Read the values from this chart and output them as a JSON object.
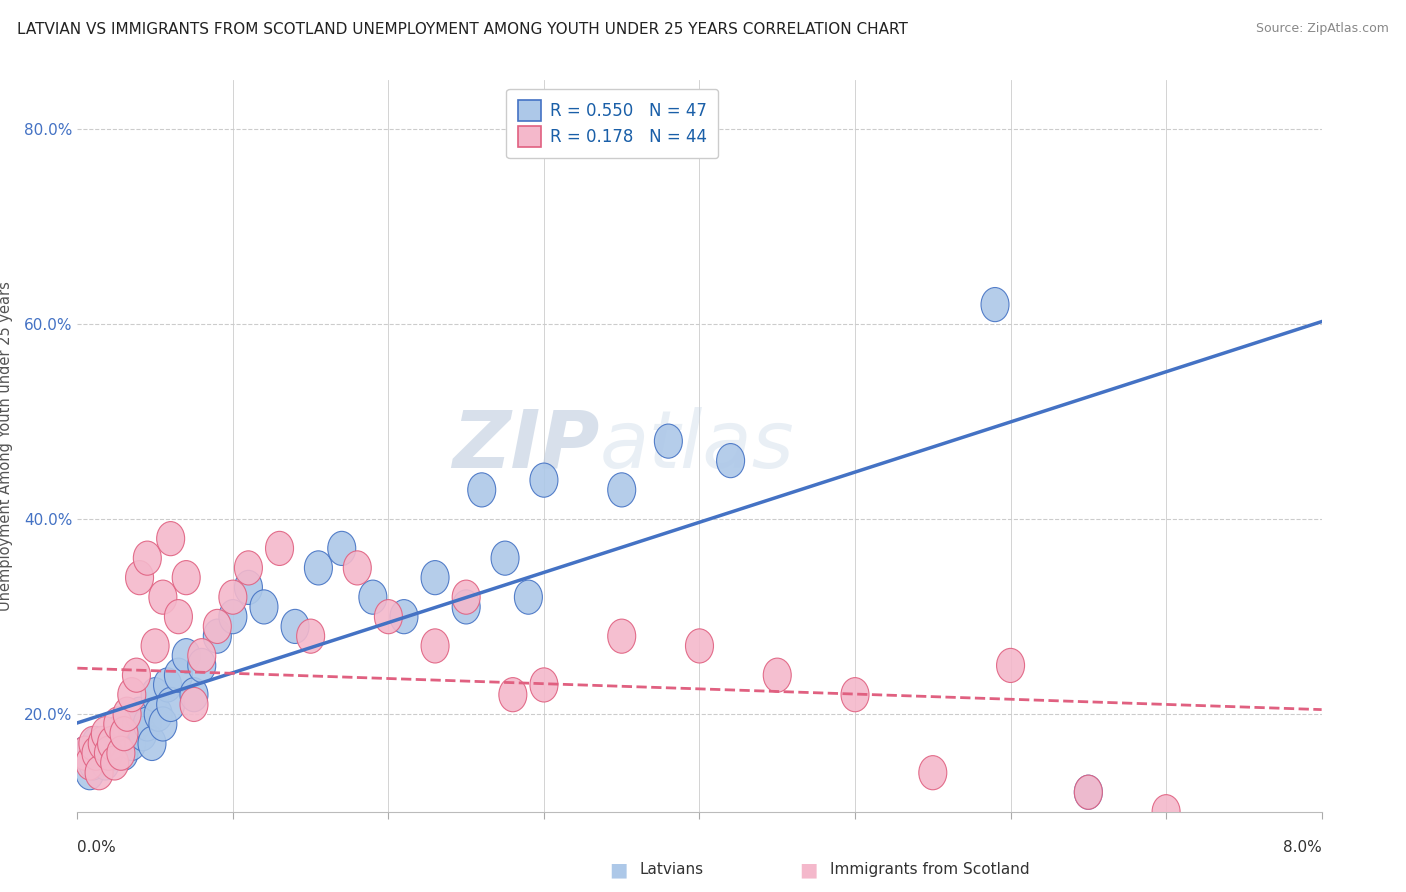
{
  "title": "LATVIAN VS IMMIGRANTS FROM SCOTLAND UNEMPLOYMENT AMONG YOUTH UNDER 25 YEARS CORRELATION CHART",
  "source": "Source: ZipAtlas.com",
  "ylabel": "Unemployment Among Youth under 25 years",
  "xlim": [
    0.0,
    8.0
  ],
  "ylim": [
    10.0,
    85.0
  ],
  "series1_label": "Latvians",
  "series1_R": 0.55,
  "series1_N": 47,
  "series1_color": "#adc8e8",
  "series1_edge_color": "#4472c4",
  "series2_label": "Immigrants from Scotland",
  "series2_R": 0.178,
  "series2_N": 44,
  "series2_color": "#f4b8cb",
  "series2_edge_color": "#e06080",
  "background_color": "#ffffff",
  "grid_color": "#cccccc",
  "ytick_color": "#4472c4",
  "watermark_color": "#d0d8e8",
  "latvians_x": [
    0.05,
    0.08,
    0.1,
    0.12,
    0.15,
    0.18,
    0.2,
    0.22,
    0.25,
    0.28,
    0.3,
    0.32,
    0.35,
    0.38,
    0.4,
    0.42,
    0.45,
    0.48,
    0.5,
    0.52,
    0.55,
    0.58,
    0.6,
    0.65,
    0.7,
    0.75,
    0.8,
    0.9,
    1.0,
    1.1,
    1.2,
    1.4,
    1.55,
    1.7,
    1.9,
    2.1,
    2.3,
    2.5,
    2.6,
    2.75,
    2.9,
    3.0,
    3.5,
    3.8,
    4.2,
    5.9,
    6.5
  ],
  "latvians_y": [
    16,
    14,
    15,
    17,
    16,
    15,
    17,
    16,
    18,
    17,
    16,
    18,
    17,
    19,
    20,
    18,
    19,
    17,
    22,
    20,
    19,
    23,
    21,
    24,
    26,
    22,
    25,
    28,
    30,
    33,
    31,
    29,
    35,
    37,
    32,
    30,
    34,
    31,
    43,
    36,
    32,
    44,
    43,
    48,
    46,
    62,
    12
  ],
  "scotland_x": [
    0.05,
    0.08,
    0.1,
    0.12,
    0.14,
    0.16,
    0.18,
    0.2,
    0.22,
    0.24,
    0.26,
    0.28,
    0.3,
    0.32,
    0.35,
    0.38,
    0.4,
    0.45,
    0.5,
    0.55,
    0.6,
    0.65,
    0.7,
    0.75,
    0.8,
    0.9,
    1.0,
    1.1,
    1.3,
    1.5,
    1.8,
    2.0,
    2.3,
    2.5,
    2.8,
    3.0,
    3.5,
    4.0,
    4.5,
    5.0,
    5.5,
    6.0,
    6.5,
    7.0
  ],
  "scotland_y": [
    16,
    15,
    17,
    16,
    14,
    17,
    18,
    16,
    17,
    15,
    19,
    16,
    18,
    20,
    22,
    24,
    34,
    36,
    27,
    32,
    38,
    30,
    34,
    21,
    26,
    29,
    32,
    35,
    37,
    28,
    35,
    30,
    27,
    32,
    22,
    23,
    28,
    27,
    24,
    22,
    14,
    25,
    12,
    10
  ]
}
